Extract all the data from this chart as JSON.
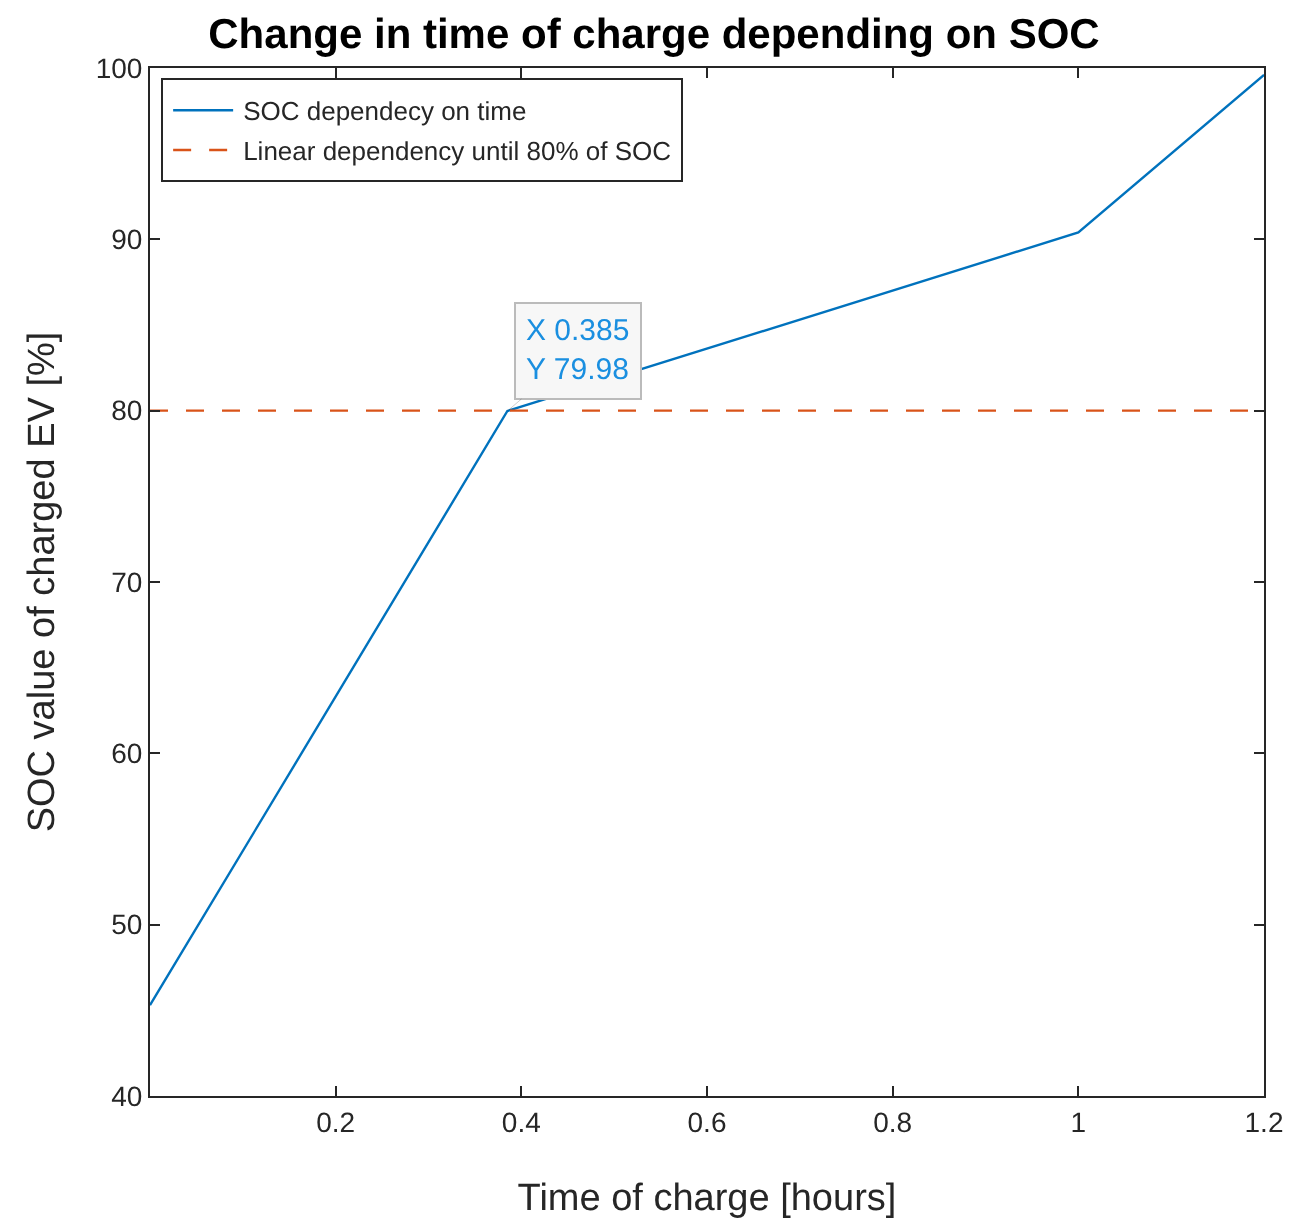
{
  "chart_data": {
    "type": "line",
    "title": "Change in time of charge depending on SOC",
    "xlabel": "Time of charge [hours]",
    "ylabel": "SOC value of charged EV [%]",
    "series": [
      {
        "name": "SOC dependecy on time",
        "color": "#0072bd",
        "x": [
          0,
          0.385,
          1.0,
          1.2
        ],
        "values": [
          45.3,
          79.98,
          90.4,
          99.6
        ],
        "line_style": "solid"
      },
      {
        "name": "Linear dependency until 80% of SOC",
        "color": "#d95319",
        "x": [
          0,
          1.2
        ],
        "values": [
          80,
          80
        ],
        "line_style": "dashed"
      }
    ],
    "annotations": [
      {
        "text": "X 0.385\nY 79.98",
        "x": 0.385,
        "y": 79.98
      }
    ],
    "xlim": [
      0,
      1.2
    ],
    "xticks": [
      0.2,
      0.4,
      0.6,
      0.8,
      1,
      1.2
    ],
    "ylim": [
      40,
      100
    ],
    "yticks": [
      40,
      50,
      60,
      70,
      80,
      90,
      100
    ],
    "grid": false,
    "legend": "top left",
    "marker": "none"
  }
}
